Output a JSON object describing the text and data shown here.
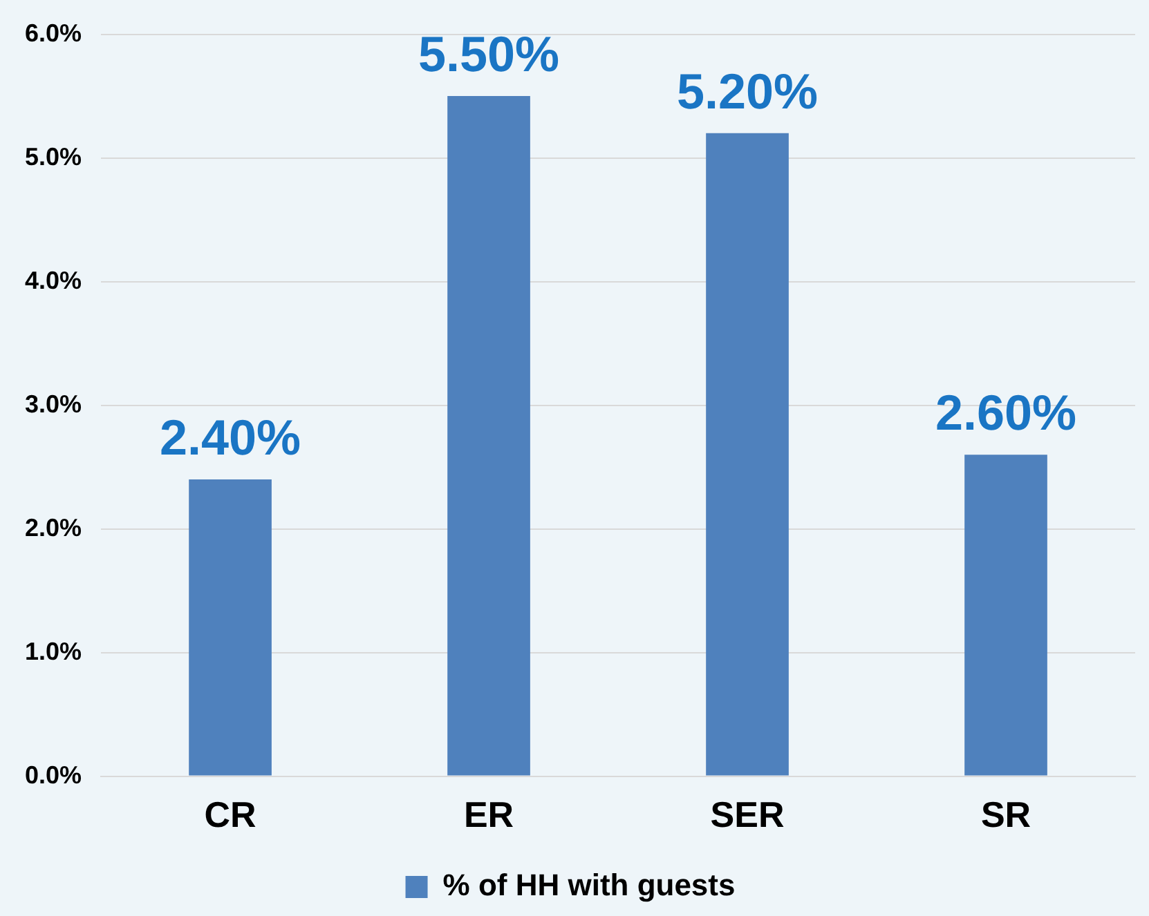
{
  "chart_data": {
    "type": "bar",
    "categories": [
      "CR",
      "ER",
      "SER",
      "SR"
    ],
    "series": [
      {
        "name": "% of HH with guests",
        "color": "#4f81bd",
        "values": [
          2.4,
          5.5,
          5.2,
          2.6
        ],
        "value_labels": [
          "2.40%",
          "5.50%",
          "5.20%",
          "2.60%"
        ]
      }
    ],
    "ylim": [
      0,
      6
    ],
    "yticks": [
      {
        "value": 0,
        "label": "0.0%"
      },
      {
        "value": 1,
        "label": "1.0%"
      },
      {
        "value": 2,
        "label": "2.0%"
      },
      {
        "value": 3,
        "label": "3.0%"
      },
      {
        "value": 4,
        "label": "4.0%"
      },
      {
        "value": 5,
        "label": "5.0%"
      },
      {
        "value": 6,
        "label": "6.0%"
      }
    ],
    "grid": "y",
    "legend": "bottom"
  }
}
